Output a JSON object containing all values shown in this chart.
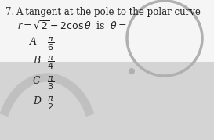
{
  "question_number": "7.",
  "question_line1": "A tangent at the pole to the polar curve",
  "question_line2": "r = \\sqrt{2} - 2\\cos\\theta  \\text{ is }  \\theta =",
  "options": [
    {
      "label": "A",
      "value": "\\frac{\\pi}{6}"
    },
    {
      "label": "B",
      "value": "\\frac{\\pi}{4}"
    },
    {
      "label": "C",
      "value": "\\frac{\\pi}{3}"
    },
    {
      "label": "D",
      "value": "\\frac{\\pi}{2}"
    }
  ],
  "bg_color": "#e8e8e8",
  "white_color": "#f5f5f5",
  "highlight_color": "#d4d4d4",
  "text_color": "#222222",
  "fig_width": 2.73,
  "fig_height": 1.79,
  "dpi": 100
}
